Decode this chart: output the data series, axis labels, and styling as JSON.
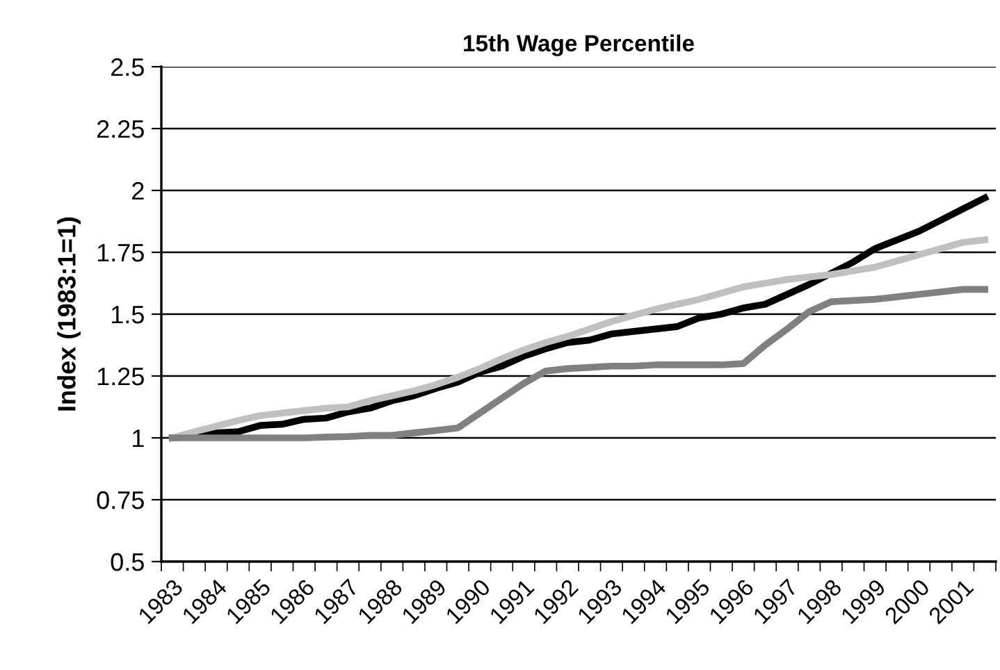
{
  "chart_data": {
    "type": "line",
    "title": "15th Wage Percentile",
    "ylabel": "Index (1983:1=1)",
    "categories": [
      "1983",
      null,
      "1984",
      null,
      "1985",
      null,
      "1986",
      null,
      "1987",
      null,
      "1988",
      null,
      "1989",
      null,
      "1990",
      null,
      "1991",
      null,
      "1992",
      null,
      "1993",
      null,
      "1994",
      null,
      "1995",
      null,
      "1996",
      null,
      "1997",
      null,
      "1998",
      null,
      "1999",
      null,
      "2000",
      null,
      "2001",
      null
    ],
    "series": [
      {
        "color": "#000000",
        "values": [
          1.0,
          1.01,
          1.02,
          1.025,
          1.05,
          1.055,
          1.075,
          1.08,
          1.105,
          1.12,
          1.15,
          1.17,
          1.2,
          1.225,
          1.265,
          1.29,
          1.33,
          1.36,
          1.385,
          1.395,
          1.42,
          1.43,
          1.44,
          1.45,
          1.485,
          1.5,
          1.525,
          1.54,
          1.58,
          1.62,
          1.665,
          1.71,
          1.765,
          1.8,
          1.835,
          1.88,
          1.925,
          1.97
        ]
      },
      {
        "color": "#c0c0c0",
        "values": [
          1.0,
          1.025,
          1.047,
          1.07,
          1.09,
          1.1,
          1.11,
          1.12,
          1.125,
          1.15,
          1.17,
          1.19,
          1.215,
          1.245,
          1.28,
          1.32,
          1.355,
          1.385,
          1.41,
          1.44,
          1.47,
          1.495,
          1.52,
          1.54,
          1.56,
          1.585,
          1.61,
          1.625,
          1.64,
          1.65,
          1.66,
          1.675,
          1.69,
          1.715,
          1.74,
          1.765,
          1.79,
          1.8
        ]
      },
      {
        "color": "#808080",
        "values": [
          1.0,
          1.0,
          1.0,
          1.0,
          1.0,
          1.0,
          1.0,
          1.003,
          1.005,
          1.01,
          1.01,
          1.02,
          1.03,
          1.04,
          1.1,
          1.16,
          1.22,
          1.27,
          1.28,
          1.285,
          1.29,
          1.29,
          1.295,
          1.295,
          1.295,
          1.295,
          1.3,
          1.375,
          1.44,
          1.51,
          1.55,
          1.555,
          1.56,
          1.57,
          1.58,
          1.59,
          1.6,
          1.6
        ]
      }
    ],
    "ylim": [
      0.5,
      2.5
    ],
    "yticks": [
      0.5,
      0.75,
      1,
      1.25,
      1.5,
      1.75,
      2,
      2.25,
      2.5
    ],
    "grid": "y",
    "marker": "none",
    "line_style": "solid"
  }
}
